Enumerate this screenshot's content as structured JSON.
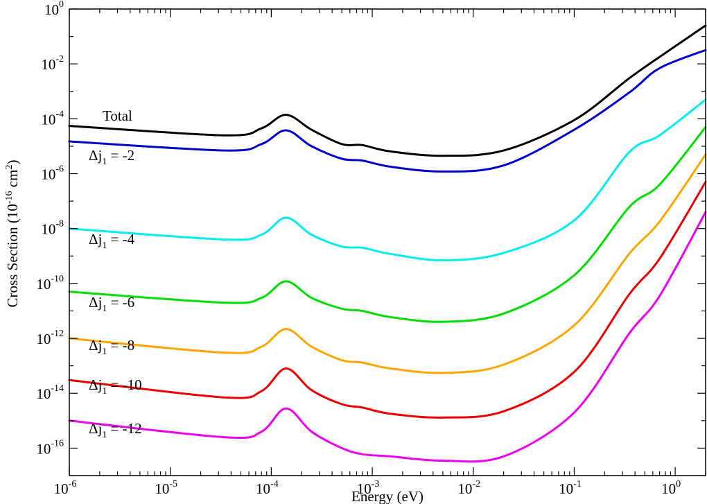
{
  "chart_data": {
    "type": "line",
    "xlabel": "Energy (eV)",
    "ylabel_parts": {
      "prefix": "Cross Section (10",
      "exponent": "-16",
      "middle": " cm",
      "exponent2": "2",
      "suffix": ")"
    },
    "xscale": "log",
    "yscale": "log",
    "xlim": [
      1e-06,
      2
    ],
    "ylim": [
      1e-17,
      1
    ],
    "grid": false,
    "legend": "none",
    "x_ticks": [
      {
        "base": "10",
        "exp": "-6",
        "value": 1e-06
      },
      {
        "base": "10",
        "exp": "-5",
        "value": 1e-05
      },
      {
        "base": "10",
        "exp": "-4",
        "value": 0.0001
      },
      {
        "base": "10",
        "exp": "-3",
        "value": 0.001
      },
      {
        "base": "10",
        "exp": "-2",
        "value": 0.01
      },
      {
        "base": "10",
        "exp": "-1",
        "value": 0.1
      },
      {
        "base": "10",
        "exp": "0",
        "value": 1
      }
    ],
    "y_ticks": [
      {
        "base": "10",
        "exp": "-16",
        "value": 1e-16
      },
      {
        "base": "10",
        "exp": "-14",
        "value": 1e-14
      },
      {
        "base": "10",
        "exp": "-12",
        "value": 1e-12
      },
      {
        "base": "10",
        "exp": "-10",
        "value": 1e-10
      },
      {
        "base": "10",
        "exp": "-8",
        "value": 1e-08
      },
      {
        "base": "10",
        "exp": "-6",
        "value": 1e-06
      },
      {
        "base": "10",
        "exp": "-4",
        "value": 0.0001
      },
      {
        "base": "10",
        "exp": "-2",
        "value": 0.01
      },
      {
        "base": "10",
        "exp": "0",
        "value": 1
      }
    ],
    "x": [
      1e-06,
      3.5e-05,
      8e-05,
      0.00014,
      0.00025,
      0.0005,
      0.0008,
      0.0015,
      0.005,
      0.02,
      0.1,
      0.35,
      0.7,
      2
    ],
    "series": [
      {
        "label": {
          "text": "Total",
          "sub": "",
          "rest": ""
        },
        "color": "#000000",
        "values": [
          5.5e-05,
          2.5e-05,
          4.5e-05,
          0.00014,
          4e-05,
          1.2e-05,
          1.1e-05,
          6.5e-06,
          4.5e-06,
          7e-06,
          9e-05,
          0.003,
          0.018,
          0.25
        ]
      },
      {
        "label": {
          "text": "Δj",
          "sub": "1",
          "rest": " = -2"
        },
        "color": "#0000cc",
        "values": [
          1.5e-05,
          7e-06,
          1.2e-05,
          3.8e-05,
          1e-05,
          3.5e-06,
          3e-06,
          1.8e-06,
          1.2e-06,
          2e-06,
          4e-05,
          0.0009,
          0.007,
          0.032
        ]
      },
      {
        "label": {
          "text": "Δj",
          "sub": "1",
          "rest": " = -4"
        },
        "color": "#00eeee",
        "values": [
          1e-08,
          4e-09,
          6e-09,
          2.5e-08,
          6e-09,
          2.2e-09,
          2e-09,
          1.2e-09,
          7e-10,
          1.3e-09,
          2e-08,
          6e-06,
          2.5e-05,
          0.0005
        ]
      },
      {
        "label": {
          "text": "Δj",
          "sub": "1",
          "rest": " = -6"
        },
        "color": "#00dd00",
        "values": [
          5e-11,
          2e-11,
          3e-11,
          1.2e-10,
          3e-11,
          1.2e-11,
          1e-11,
          6e-12,
          4e-12,
          8e-12,
          2e-10,
          6e-08,
          4e-07,
          5e-05
        ]
      },
      {
        "label": {
          "text": "Δj",
          "sub": "1",
          "rest": " = -8"
        },
        "color": "#ffa500",
        "values": [
          1e-12,
          3e-13,
          5e-13,
          2.2e-12,
          5e-13,
          1.6e-13,
          1.3e-13,
          8e-14,
          5.5e-14,
          1.1e-13,
          3e-12,
          1.2e-09,
          1.8e-08,
          5e-06
        ]
      },
      {
        "label": {
          "text": "Δj",
          "sub": "1",
          "rest": " = -10"
        },
        "color": "#ee0000",
        "values": [
          3e-14,
          7e-15,
          1.2e-14,
          8e-14,
          1.3e-14,
          4e-15,
          3e-15,
          1.8e-15,
          1.3e-15,
          2.2e-15,
          6e-14,
          4e-11,
          8e-10,
          5e-07
        ]
      },
      {
        "label": {
          "text": "Δj",
          "sub": "1",
          "rest": " = -12"
        },
        "color": "#ee00ee",
        "values": [
          1e-15,
          2.5e-16,
          4e-16,
          2.8e-15,
          4e-16,
          1e-16,
          6e-17,
          5e-17,
          3.5e-17,
          5e-17,
          2e-15,
          1.5e-12,
          3.5e-11,
          4e-08
        ]
      }
    ]
  }
}
